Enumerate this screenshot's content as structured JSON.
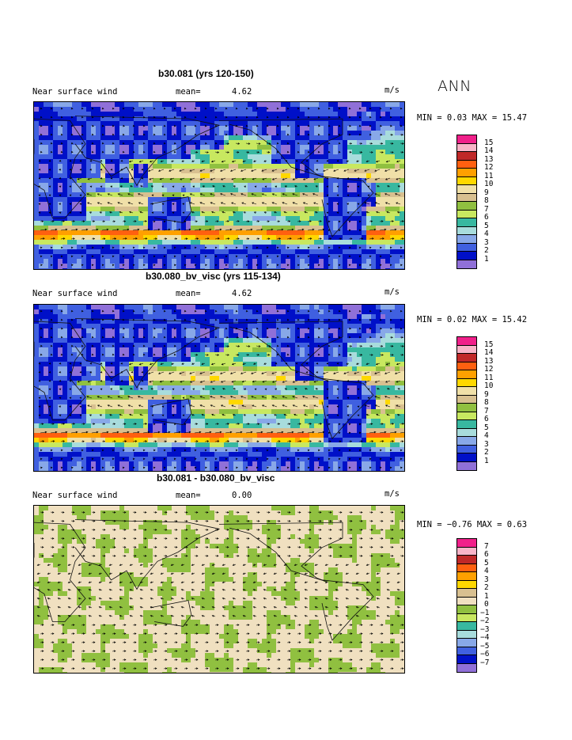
{
  "season": "ANN",
  "panels": [
    {
      "title": "b30.081 (yrs 120-150)",
      "field": "Near surface wind",
      "mean_label": "mean=",
      "mean_value": "4.62",
      "units": "m/s",
      "stats": "MIN =    0.03 MAX =  15.47",
      "colorbar_labels": [
        "15",
        "14",
        "13",
        "12",
        "11",
        "10",
        "9",
        "8",
        "7",
        "6",
        "5",
        "4",
        "3",
        "2",
        "1"
      ],
      "colors": [
        "#f0208a",
        "#f8b4c8",
        "#c02828",
        "#ff6010",
        "#ffa000",
        "#ffd800",
        "#f0e0a8",
        "#d8c090",
        "#90c040",
        "#c8e860",
        "#38b8a0",
        "#a8dcdc",
        "#88a8e8",
        "#4060e0",
        "#0010c8",
        "#9070d8"
      ]
    },
    {
      "title": "b30.080_bv_visc (yrs 115-134)",
      "field": "Near surface wind",
      "mean_label": "mean=",
      "mean_value": "4.62",
      "units": "m/s",
      "stats": "MIN =    0.02 MAX =  15.42",
      "colorbar_labels": [
        "15",
        "14",
        "13",
        "12",
        "11",
        "10",
        "9",
        "8",
        "7",
        "6",
        "5",
        "4",
        "3",
        "2",
        "1"
      ],
      "colors": [
        "#f0208a",
        "#f8b4c8",
        "#c02828",
        "#ff6010",
        "#ffa000",
        "#ffd800",
        "#f0e0a8",
        "#d8c090",
        "#90c040",
        "#c8e860",
        "#38b8a0",
        "#a8dcdc",
        "#88a8e8",
        "#4060e0",
        "#0010c8",
        "#9070d8"
      ]
    },
    {
      "title": "b30.081 - b30.080_bv_visc",
      "field": "Near surface wind",
      "mean_label": "mean=",
      "mean_value": "0.00",
      "units": "m/s",
      "stats": "MIN =  −0.76 MAX =    0.63",
      "colorbar_labels": [
        "7",
        "6",
        "5",
        "4",
        "3",
        "2",
        "1",
        "0",
        "−1",
        "−2",
        "−3",
        "−4",
        "−5",
        "−6",
        "−7"
      ],
      "colors": [
        "#f0208a",
        "#f8b4c8",
        "#c02828",
        "#ff6010",
        "#ffa000",
        "#ffd800",
        "#d8c090",
        "#f0e0c0",
        "#90c040",
        "#c8e860",
        "#38b8a0",
        "#a8dcdc",
        "#88a8e8",
        "#4060e0",
        "#0010c8",
        "#9070d8"
      ]
    }
  ]
}
